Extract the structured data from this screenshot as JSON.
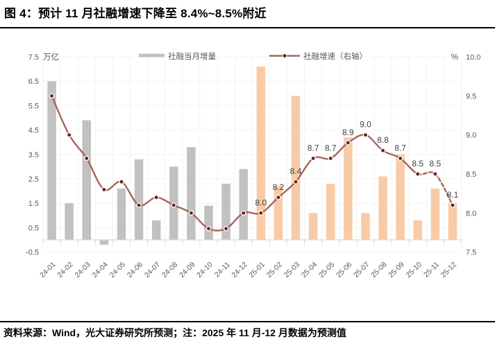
{
  "page": {
    "title": "图 4：预计 11 月社融增速下降至 8.4%~8.5%附近",
    "source_note": "资料来源：Wind，光大证券研究所预测；注：2025 年 11 月-12 月数据为预测值"
  },
  "chart_data": {
    "type": "bar",
    "title": "预计 11 月社融增速下降至 8.4%~8.5%附近",
    "legend_position": "top",
    "grid": true,
    "categories": [
      "24-01",
      "24-02",
      "24-03",
      "24-04",
      "24-05",
      "24-06",
      "24-07",
      "24-08",
      "24-09",
      "24-10",
      "24-11",
      "24-12",
      "25-01",
      "25-02",
      "25-03",
      "25-04",
      "25-05",
      "25-06",
      "25-07",
      "25-08",
      "25-09",
      "25-10",
      "25-11",
      "25-12"
    ],
    "series": [
      {
        "name": "社融当月增量",
        "type": "bar",
        "axis": "left",
        "unit": "万亿",
        "values": [
          6.5,
          1.5,
          4.9,
          -0.2,
          2.1,
          3.3,
          0.8,
          3.0,
          3.8,
          1.4,
          2.3,
          2.9,
          7.1,
          2.2,
          5.9,
          1.1,
          2.3,
          4.2,
          1.1,
          2.6,
          3.5,
          0.8,
          2.1,
          1.5
        ]
      },
      {
        "name": "社融增速（右轴）",
        "type": "line",
        "axis": "right",
        "unit": "%",
        "values": [
          9.5,
          9.0,
          8.7,
          8.3,
          8.4,
          8.1,
          8.2,
          8.1,
          8.0,
          7.8,
          7.8,
          8.0,
          8.0,
          8.2,
          8.4,
          8.7,
          8.7,
          8.9,
          9.0,
          8.8,
          8.7,
          8.5,
          8.5,
          8.1
        ],
        "point_labels": [
          "",
          "",
          "",
          "",
          "",
          "",
          "",
          "",
          "",
          "",
          "",
          "",
          "8.0",
          "8.2",
          "8.4",
          "8.7",
          "8.7",
          "8.9",
          "9.0",
          "8.8",
          "8.7",
          "8.5",
          "8.5",
          "8.1"
        ],
        "forecast_start_index": 21,
        "forecast_note": "2025 年 11 月-12 月数据为预测值"
      }
    ],
    "left_axis": {
      "unit": "万亿",
      "min": -0.5,
      "max": 7.5,
      "step": 1.0,
      "ticks": [
        "7.5",
        "6.5",
        "5.5",
        "4.5",
        "3.5",
        "2.5",
        "1.5",
        "0.5",
        "-0.5"
      ]
    },
    "right_axis": {
      "unit": "%",
      "min": 7.5,
      "max": 10.0,
      "step": 0.5,
      "ticks": [
        "10.0",
        "9.5",
        "9.0",
        "8.5",
        "8.0",
        "7.5"
      ]
    },
    "colors": {
      "bar_2024": "#c1c1c1",
      "bar_2025": "#f8cba6",
      "line": "#a8655b",
      "point_fill": "#5a2a22",
      "point_ring": "#ffffff",
      "axis_text": "#595959",
      "data_label": "#404040",
      "gridline": "#f3f3f3",
      "axis_line": "#d9d9d9"
    }
  }
}
